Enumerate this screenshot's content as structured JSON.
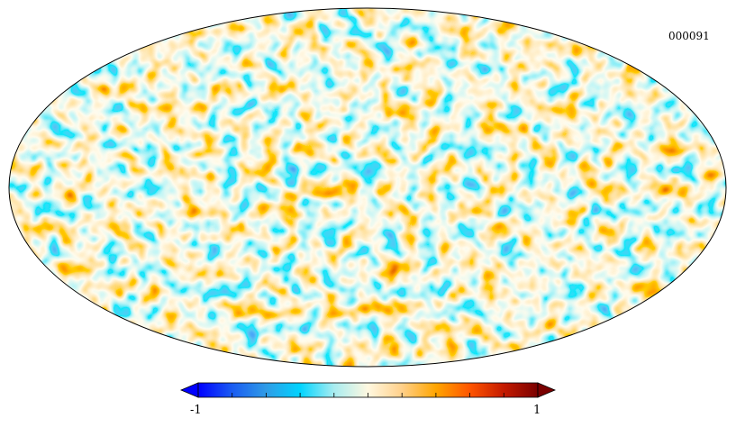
{
  "map": {
    "id_label": "000091",
    "projection": "Mollweide"
  },
  "colorbar": {
    "min_label": "-1",
    "max_label": "1",
    "min": -1,
    "max": 1,
    "num_ticks": 11,
    "extend": "both",
    "colors": [
      "#0000ff",
      "#1a5cf2",
      "#2f9be6",
      "#00d4ff",
      "#a8ecf0",
      "#fff8e0",
      "#ffd08a",
      "#ffa500",
      "#ff5500",
      "#c41a00",
      "#7a0000"
    ]
  }
}
